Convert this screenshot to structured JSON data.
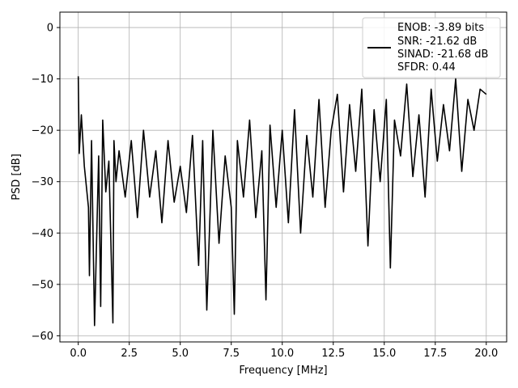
{
  "chart_data": {
    "type": "line",
    "title": "",
    "xlabel": "Frequency [MHz]",
    "ylabel": "PSD [dB]",
    "xlim": [
      -0.9,
      21.0
    ],
    "ylim": [
      -61.2,
      3.0
    ],
    "xticks": [
      0.0,
      2.5,
      5.0,
      7.5,
      10.0,
      12.5,
      15.0,
      17.5,
      20.0
    ],
    "xtick_labels": [
      "0.0",
      "2.5",
      "5.0",
      "7.5",
      "10.0",
      "12.5",
      "15.0",
      "17.5",
      "20.0"
    ],
    "yticks": [
      0,
      -10,
      -20,
      -30,
      -40,
      -50,
      -60
    ],
    "ytick_labels": [
      "0",
      "−10",
      "−20",
      "−30",
      "−40",
      "−50",
      "−60"
    ],
    "grid": true,
    "legend_position": "top-right",
    "line_color": "#000000",
    "series": [
      {
        "name": "",
        "legend_text": [
          "ENOB: -3.89 bits",
          "SNR: -21.62 dB",
          "SINAD: -21.68 dB",
          "SFDR: 0.44"
        ],
        "x": [
          0.0,
          0.05,
          0.15,
          0.3,
          0.5,
          0.55,
          0.65,
          0.8,
          1.0,
          1.1,
          1.2,
          1.35,
          1.5,
          1.7,
          1.75,
          1.85,
          2.0,
          2.3,
          2.6,
          2.9,
          3.2,
          3.5,
          3.8,
          4.1,
          4.4,
          4.7,
          5.0,
          5.3,
          5.6,
          5.9,
          6.1,
          6.3,
          6.6,
          6.9,
          7.2,
          7.5,
          7.65,
          7.8,
          8.1,
          8.4,
          8.7,
          9.0,
          9.2,
          9.4,
          9.7,
          10.0,
          10.3,
          10.6,
          10.9,
          11.2,
          11.5,
          11.8,
          12.1,
          12.4,
          12.7,
          13.0,
          13.3,
          13.6,
          13.9,
          14.2,
          14.5,
          14.8,
          15.1,
          15.3,
          15.5,
          15.8,
          16.1,
          16.4,
          16.7,
          17.0,
          17.3,
          17.6,
          17.9,
          18.2,
          18.5,
          18.8,
          19.1,
          19.4,
          19.7,
          20.0
        ],
        "y": [
          -9.5,
          -24.5,
          -17.0,
          -27.0,
          -35.0,
          -48.3,
          -22.0,
          -58.0,
          -25.0,
          -54.3,
          -18.0,
          -32.0,
          -26.0,
          -57.5,
          -22.0,
          -30.0,
          -24.0,
          -33.0,
          -22.0,
          -37.0,
          -20.0,
          -33.0,
          -24.0,
          -38.0,
          -22.0,
          -34.0,
          -27.0,
          -36.0,
          -21.0,
          -46.3,
          -22.0,
          -55.0,
          -20.0,
          -42.0,
          -25.0,
          -35.0,
          -55.8,
          -22.0,
          -33.0,
          -18.0,
          -37.0,
          -24.0,
          -53.0,
          -19.0,
          -35.0,
          -20.0,
          -38.0,
          -16.0,
          -40.0,
          -21.0,
          -33.0,
          -14.0,
          -35.0,
          -20.0,
          -13.0,
          -32.0,
          -15.0,
          -28.0,
          -12.0,
          -42.5,
          -16.0,
          -30.0,
          -14.0,
          -46.8,
          -18.0,
          -25.0,
          -11.0,
          -29.0,
          -17.0,
          -33.0,
          -12.0,
          -26.0,
          -15.0,
          -24.0,
          -10.0,
          -28.0,
          -14.0,
          -20.0,
          -12.0,
          -13.0
        ]
      }
    ]
  }
}
